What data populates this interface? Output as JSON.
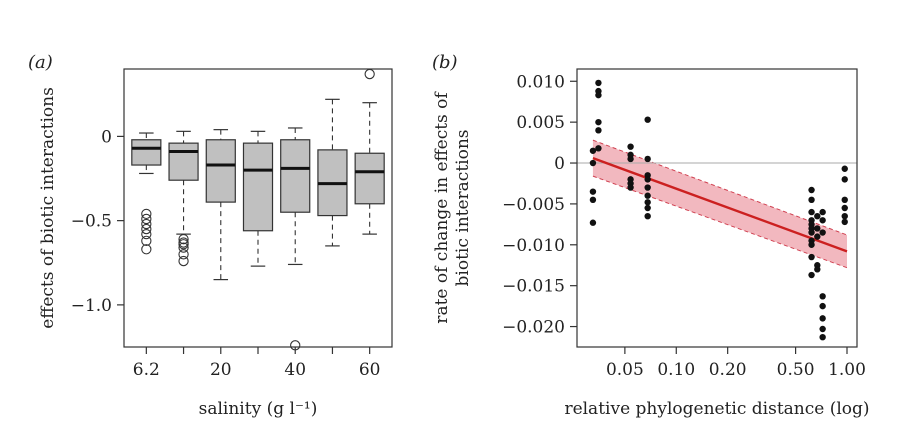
{
  "chart_data": [
    {
      "panel": "(a)",
      "type": "boxplot",
      "xlabel": "salinity (g l⁻¹)",
      "ylabel": "effects of biotic interactions",
      "categories": [
        "6.2",
        "",
        "20",
        "",
        "40",
        "",
        "60"
      ],
      "x_tick_labels": [
        "6.2",
        "20",
        "40",
        "60"
      ],
      "y_ticks": [
        0,
        -0.5,
        -1.0
      ],
      "y_tick_labels": [
        "0",
        "−0.5",
        "−1.0"
      ],
      "ylim": [
        -1.25,
        0.4
      ],
      "boxes": [
        {
          "whisker_low": -0.22,
          "q1": -0.17,
          "median": -0.07,
          "q3": -0.02,
          "whisker_high": 0.02,
          "outliers": [
            -0.46,
            -0.49,
            -0.52,
            -0.55,
            -0.58,
            -0.62,
            -0.67
          ]
        },
        {
          "whisker_low": -0.58,
          "q1": -0.26,
          "median": -0.09,
          "q3": -0.04,
          "whisker_high": 0.03,
          "outliers": [
            -0.61,
            -0.63,
            -0.64,
            -0.66,
            -0.7,
            -0.74
          ]
        },
        {
          "whisker_low": -0.85,
          "q1": -0.39,
          "median": -0.17,
          "q3": -0.02,
          "whisker_high": 0.04,
          "outliers": []
        },
        {
          "whisker_low": -0.77,
          "q1": -0.56,
          "median": -0.2,
          "q3": -0.04,
          "whisker_high": 0.03,
          "outliers": []
        },
        {
          "whisker_low": -0.76,
          "q1": -0.45,
          "median": -0.19,
          "q3": -0.02,
          "whisker_high": 0.05,
          "outliers": [
            -1.24
          ]
        },
        {
          "whisker_low": -0.65,
          "q1": -0.47,
          "median": -0.28,
          "q3": -0.08,
          "whisker_high": 0.22,
          "outliers": []
        },
        {
          "whisker_low": -0.58,
          "q1": -0.4,
          "median": -0.21,
          "q3": -0.1,
          "whisker_high": 0.2,
          "outliers": [
            0.37
          ]
        }
      ],
      "box_color": "#c0c0c0"
    },
    {
      "panel": "(b)",
      "type": "scatter",
      "xlabel": "relative phylogenetic distance (log)",
      "ylabel_lines": [
        "rate of change in effects of",
        "biotic interactions"
      ],
      "x_scale": "log",
      "xlim": [
        0.03,
        1.0
      ],
      "ylim": [
        -0.0225,
        0.0115
      ],
      "x_ticks": [
        0.05,
        0.1,
        0.2,
        0.5,
        1.0
      ],
      "x_tick_labels": [
        "0.05",
        "0.10",
        "0.20",
        "0.50",
        "1.00"
      ],
      "y_ticks": [
        0.01,
        0.005,
        0,
        -0.005,
        -0.01,
        -0.015,
        -0.02
      ],
      "y_tick_labels": [
        "0.010",
        "0.005",
        "0",
        "−0.005",
        "−0.010",
        "−0.015",
        "−0.020"
      ],
      "reference_line_y": 0,
      "points": [
        [
          0.0325,
          0.0015
        ],
        [
          0.0325,
          0.0
        ],
        [
          0.0325,
          -0.0035
        ],
        [
          0.0325,
          -0.0045
        ],
        [
          0.0325,
          -0.0073
        ],
        [
          0.035,
          0.0098
        ],
        [
          0.035,
          0.0088
        ],
        [
          0.035,
          0.0083
        ],
        [
          0.035,
          0.005
        ],
        [
          0.035,
          0.004
        ],
        [
          0.035,
          0.0018
        ],
        [
          0.054,
          0.002
        ],
        [
          0.054,
          0.001
        ],
        [
          0.054,
          0.0005
        ],
        [
          0.054,
          -0.002
        ],
        [
          0.054,
          -0.0025
        ],
        [
          0.054,
          -0.003
        ],
        [
          0.068,
          0.0053
        ],
        [
          0.068,
          0.0005
        ],
        [
          0.068,
          -0.0015
        ],
        [
          0.068,
          -0.002
        ],
        [
          0.068,
          -0.003
        ],
        [
          0.068,
          -0.004
        ],
        [
          0.068,
          -0.0048
        ],
        [
          0.068,
          -0.0055
        ],
        [
          0.068,
          -0.0065
        ],
        [
          0.62,
          -0.0033
        ],
        [
          0.62,
          -0.0045
        ],
        [
          0.62,
          -0.006
        ],
        [
          0.62,
          -0.007
        ],
        [
          0.62,
          -0.0075
        ],
        [
          0.62,
          -0.008
        ],
        [
          0.62,
          -0.0085
        ],
        [
          0.62,
          -0.0095
        ],
        [
          0.62,
          -0.01
        ],
        [
          0.62,
          -0.0115
        ],
        [
          0.62,
          -0.0137
        ],
        [
          0.67,
          -0.0065
        ],
        [
          0.67,
          -0.008
        ],
        [
          0.67,
          -0.009
        ],
        [
          0.67,
          -0.0125
        ],
        [
          0.67,
          -0.013
        ],
        [
          0.72,
          -0.006
        ],
        [
          0.72,
          -0.007
        ],
        [
          0.72,
          -0.0085
        ],
        [
          0.72,
          -0.0163
        ],
        [
          0.72,
          -0.0175
        ],
        [
          0.72,
          -0.019
        ],
        [
          0.72,
          -0.0203
        ],
        [
          0.72,
          -0.0213
        ],
        [
          0.97,
          -0.0007
        ],
        [
          0.97,
          -0.002
        ],
        [
          0.97,
          -0.0045
        ],
        [
          0.97,
          -0.0055
        ],
        [
          0.97,
          -0.0065
        ],
        [
          0.97,
          -0.0072
        ]
      ],
      "fit": {
        "x": [
          0.0325,
          1.0
        ],
        "y": [
          0.0006,
          -0.0108
        ],
        "ci_half_width": [
          0.0022,
          0.002
        ]
      },
      "fit_color": "#cc2020",
      "band_color": "#f2b8bf"
    }
  ]
}
